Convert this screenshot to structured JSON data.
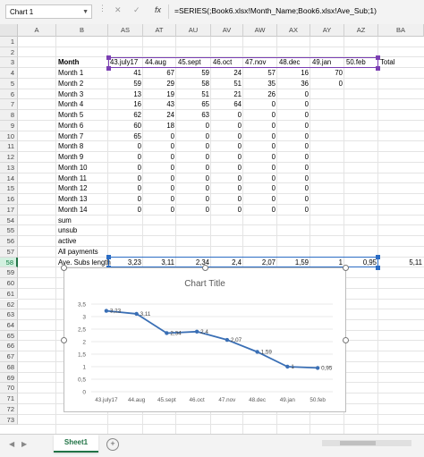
{
  "namebox": "Chart 1",
  "formula_bar": {
    "cancel_icon": "✕",
    "enter_icon": "✓",
    "fx": "fx",
    "formula": "=SERIES(;Book6.xlsx!Month_Name;Book6.xlsx!Ave_Sub;1)"
  },
  "columns": [
    "A",
    "B",
    "AS",
    "AT",
    "AU",
    "AV",
    "AW",
    "AX",
    "AY",
    "AZ",
    "BA"
  ],
  "row_numbers": [
    "1",
    "2",
    "3",
    "4",
    "5",
    "6",
    "7",
    "8",
    "9",
    "10",
    "11",
    "12",
    "13",
    "14",
    "15",
    "16",
    "17",
    "54",
    "55",
    "56",
    "57",
    "58",
    "59",
    "60",
    "61",
    "62",
    "63",
    "64",
    "65",
    "66",
    "67",
    "68",
    "69",
    "70",
    "71",
    "72",
    "73"
  ],
  "header_row": {
    "label": "Month",
    "months": [
      "43.july17",
      "44.aug",
      "45.sept",
      "46.oct",
      "47.nov",
      "48.dec",
      "49.jan",
      "50.feb"
    ],
    "total": "Total"
  },
  "table_rows": [
    {
      "label": "Month 1",
      "values": [
        "41",
        "67",
        "59",
        "24",
        "57",
        "16",
        "70",
        ""
      ]
    },
    {
      "label": "Month 2",
      "values": [
        "59",
        "29",
        "58",
        "51",
        "35",
        "36",
        "0",
        ""
      ]
    },
    {
      "label": "Month 3",
      "values": [
        "13",
        "19",
        "51",
        "21",
        "26",
        "0",
        "",
        ""
      ]
    },
    {
      "label": "Month 4",
      "values": [
        "16",
        "43",
        "65",
        "64",
        "0",
        "0",
        "",
        ""
      ]
    },
    {
      "label": "Month 5",
      "values": [
        "62",
        "24",
        "63",
        "0",
        "0",
        "0",
        "",
        ""
      ]
    },
    {
      "label": "Month 6",
      "values": [
        "60",
        "18",
        "0",
        "0",
        "0",
        "0",
        "",
        ""
      ]
    },
    {
      "label": "Month 7",
      "values": [
        "65",
        "0",
        "0",
        "0",
        "0",
        "0",
        "",
        ""
      ]
    },
    {
      "label": "Month 8",
      "values": [
        "0",
        "0",
        "0",
        "0",
        "0",
        "0",
        "",
        ""
      ]
    },
    {
      "label": "Month 9",
      "values": [
        "0",
        "0",
        "0",
        "0",
        "0",
        "0",
        "",
        ""
      ]
    },
    {
      "label": "Month 10",
      "values": [
        "0",
        "0",
        "0",
        "0",
        "0",
        "0",
        "",
        ""
      ]
    },
    {
      "label": "Month 11",
      "values": [
        "0",
        "0",
        "0",
        "0",
        "0",
        "0",
        "",
        ""
      ]
    },
    {
      "label": "Month 12",
      "values": [
        "0",
        "0",
        "0",
        "0",
        "0",
        "0",
        "",
        ""
      ]
    },
    {
      "label": "Month 13",
      "values": [
        "0",
        "0",
        "0",
        "0",
        "0",
        "0",
        "",
        ""
      ]
    },
    {
      "label": "Month 14",
      "values": [
        "0",
        "0",
        "0",
        "0",
        "0",
        "0",
        "",
        ""
      ]
    }
  ],
  "summary_rows": {
    "sum": "sum",
    "unsub": "unsub",
    "active": "active",
    "all_payments": "All payments",
    "ave_label": "Ave. Subs length",
    "ave_values": [
      "3,23",
      "3,11",
      "2,34",
      "2,4",
      "2,07",
      "1,59",
      "1",
      "0,95"
    ],
    "ave_total": "5,11"
  },
  "chart_data": {
    "type": "line",
    "title": "Chart Title",
    "categories": [
      "43.july17",
      "44.aug",
      "45.sept",
      "46.oct",
      "47.nov",
      "48.dec",
      "49.jan",
      "50.feb"
    ],
    "values": [
      3.23,
      3.11,
      2.34,
      2.4,
      2.07,
      1.59,
      1,
      0.95
    ],
    "data_labels": [
      "3,23",
      "3,11",
      "2,34",
      "2,4",
      "2,07",
      "1,59",
      "1",
      "0,95"
    ],
    "y_ticks": [
      "0",
      "0,5",
      "1",
      "1,5",
      "2",
      "2,5",
      "3",
      "3,5"
    ],
    "ylim": [
      0,
      3.5
    ],
    "grid": true,
    "line_color": "#3a6fb5"
  },
  "sheet_tabs": {
    "active": "Sheet1",
    "add": "+"
  },
  "colors": {
    "accent": "#217346",
    "selection_blue": "#2b6cc4",
    "selection_purple": "#7b3fb3"
  }
}
